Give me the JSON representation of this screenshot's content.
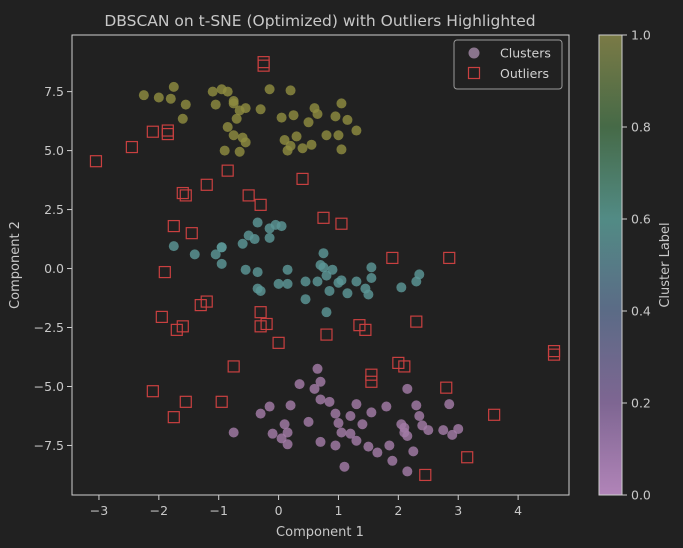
{
  "chart_data": {
    "type": "scatter",
    "title": "DBSCAN on t-SNE (Optimized) with Outliers Highlighted",
    "xlabel": "Component 1",
    "ylabel": "Component 2",
    "xlim": [
      -3.45,
      4.85
    ],
    "ylim": [
      -9.6,
      9.9
    ],
    "xticks": [
      -3,
      -2,
      -1,
      0,
      1,
      2,
      3,
      4
    ],
    "xtick_labels": [
      "−3",
      "−2",
      "−1",
      "0",
      "1",
      "2",
      "3",
      "4"
    ],
    "yticks": [
      -7.5,
      -5.0,
      -2.5,
      0.0,
      2.5,
      5.0,
      7.5
    ],
    "ytick_labels": [
      "−7.5",
      "−5.0",
      "−2.5",
      "0.0",
      "2.5",
      "5.0",
      "7.5"
    ],
    "grid": false,
    "legend_position": "top-right",
    "colorbar": {
      "label": "Cluster Label",
      "ticks": [
        0.0,
        0.2,
        0.4,
        0.6,
        0.8,
        1.0
      ],
      "tick_labels": [
        "0.0",
        "0.2",
        "0.4",
        "0.6",
        "0.8",
        "1.0"
      ],
      "colormap": [
        "#b184b8",
        "#7e6692",
        "#5b6b86",
        "#528b85",
        "#466a47",
        "#7a7a46"
      ]
    },
    "series": [
      {
        "name": "Clusters",
        "marker": "circle",
        "clusters": [
          {
            "label": 1.0,
            "color": "#8e8b3f",
            "points": [
              [
                -2.25,
                7.35
              ],
              [
                -2.0,
                7.25
              ],
              [
                -1.8,
                7.2
              ],
              [
                -1.75,
                7.7
              ],
              [
                -1.55,
                6.95
              ],
              [
                -1.6,
                6.35
              ],
              [
                -1.1,
                7.5
              ],
              [
                -0.95,
                7.6
              ],
              [
                -0.85,
                7.5
              ],
              [
                -0.75,
                7.1
              ],
              [
                -1.05,
                6.95
              ],
              [
                -0.7,
                6.35
              ],
              [
                -0.65,
                6.7
              ],
              [
                -0.55,
                6.8
              ],
              [
                -0.3,
                6.75
              ],
              [
                -0.85,
                6.0
              ],
              [
                -0.75,
                5.65
              ],
              [
                -0.6,
                5.55
              ],
              [
                -0.9,
                5.0
              ],
              [
                -0.65,
                4.95
              ],
              [
                -0.55,
                5.35
              ],
              [
                -0.15,
                7.6
              ],
              [
                0.05,
                6.4
              ],
              [
                0.25,
                6.5
              ],
              [
                0.2,
                7.55
              ],
              [
                0.5,
                6.2
              ],
              [
                0.6,
                6.8
              ],
              [
                0.65,
                6.55
              ],
              [
                0.1,
                5.45
              ],
              [
                0.2,
                5.2
              ],
              [
                0.3,
                5.6
              ],
              [
                0.4,
                5.1
              ],
              [
                0.15,
                5.0
              ],
              [
                0.55,
                5.25
              ],
              [
                0.8,
                5.65
              ],
              [
                0.95,
                6.45
              ],
              [
                1.05,
                7.0
              ],
              [
                1.15,
                6.3
              ],
              [
                1.0,
                5.65
              ],
              [
                1.05,
                5.05
              ],
              [
                1.3,
                5.85
              ],
              [
                -0.75,
                7.0
              ]
            ]
          },
          {
            "label": 0.5,
            "color": "#5b9696",
            "points": [
              [
                -1.75,
                0.95
              ],
              [
                -1.4,
                0.6
              ],
              [
                -1.05,
                0.6
              ],
              [
                -0.95,
                0.9
              ],
              [
                -0.95,
                0.2
              ],
              [
                -0.6,
                1.05
              ],
              [
                -0.5,
                1.4
              ],
              [
                -0.4,
                1.25
              ],
              [
                -0.35,
                1.95
              ],
              [
                -0.15,
                1.3
              ],
              [
                -0.15,
                1.7
              ],
              [
                0.05,
                1.8
              ],
              [
                -0.55,
                -0.05
              ],
              [
                -0.35,
                -0.15
              ],
              [
                -0.3,
                -0.95
              ],
              [
                -0.35,
                -0.85
              ],
              [
                0.0,
                -0.65
              ],
              [
                0.15,
                -0.65
              ],
              [
                0.15,
                -0.05
              ],
              [
                0.45,
                -0.55
              ],
              [
                0.45,
                -1.3
              ],
              [
                0.65,
                -0.55
              ],
              [
                0.7,
                0.15
              ],
              [
                0.75,
                0.05
              ],
              [
                0.75,
                0.65
              ],
              [
                0.8,
                -0.3
              ],
              [
                0.85,
                -0.95
              ],
              [
                0.9,
                -0.05
              ],
              [
                1.0,
                -0.6
              ],
              [
                1.05,
                -0.5
              ],
              [
                1.15,
                -1.05
              ],
              [
                0.8,
                -1.85
              ],
              [
                1.3,
                -0.55
              ],
              [
                1.45,
                -0.85
              ],
              [
                1.5,
                -1.1
              ],
              [
                1.55,
                -0.4
              ],
              [
                1.55,
                0.05
              ],
              [
                2.05,
                -0.8
              ],
              [
                2.3,
                -0.55
              ],
              [
                2.35,
                -0.25
              ],
              [
                -0.05,
                1.85
              ],
              [
                -0.95,
                0.9
              ]
            ]
          },
          {
            "label": 0.0,
            "color": "#a27ba6",
            "points": [
              [
                -0.75,
                -6.95
              ],
              [
                -0.3,
                -6.15
              ],
              [
                -0.15,
                -5.85
              ],
              [
                -0.1,
                -7.0
              ],
              [
                0.05,
                -7.2
              ],
              [
                0.1,
                -6.6
              ],
              [
                0.15,
                -6.95
              ],
              [
                0.15,
                -7.45
              ],
              [
                0.2,
                -5.8
              ],
              [
                0.35,
                -4.9
              ],
              [
                0.5,
                -6.5
              ],
              [
                0.6,
                -5.1
              ],
              [
                0.65,
                -4.25
              ],
              [
                0.7,
                -4.8
              ],
              [
                0.7,
                -5.55
              ],
              [
                0.7,
                -7.35
              ],
              [
                0.85,
                -5.65
              ],
              [
                0.95,
                -6.15
              ],
              [
                0.95,
                -7.5
              ],
              [
                1.0,
                -6.55
              ],
              [
                1.05,
                -6.95
              ],
              [
                1.1,
                -8.4
              ],
              [
                1.2,
                -7.0
              ],
              [
                1.2,
                -6.25
              ],
              [
                1.3,
                -5.75
              ],
              [
                1.3,
                -7.3
              ],
              [
                1.4,
                -6.6
              ],
              [
                1.5,
                -7.55
              ],
              [
                1.55,
                -6.1
              ],
              [
                1.65,
                -7.8
              ],
              [
                1.8,
                -5.85
              ],
              [
                1.85,
                -7.5
              ],
              [
                1.9,
                -8.15
              ],
              [
                2.1,
                -6.75
              ],
              [
                2.15,
                -5.1
              ],
              [
                2.15,
                -7.1
              ],
              [
                2.25,
                -7.75
              ],
              [
                2.15,
                -8.6
              ],
              [
                2.3,
                -5.8
              ],
              [
                2.35,
                -6.25
              ],
              [
                2.4,
                -6.65
              ],
              [
                2.5,
                -6.85
              ],
              [
                2.75,
                -6.85
              ],
              [
                2.85,
                -5.75
              ],
              [
                2.9,
                -7.05
              ],
              [
                3.0,
                -6.8
              ],
              [
                2.05,
                -6.6
              ],
              [
                2.1,
                -6.95
              ]
            ]
          }
        ]
      },
      {
        "name": "Outliers",
        "marker": "square",
        "color": "#c94040",
        "points": [
          [
            -3.05,
            4.55
          ],
          [
            -2.45,
            5.15
          ],
          [
            -2.1,
            5.8
          ],
          [
            -1.85,
            5.85
          ],
          [
            -1.85,
            5.7
          ],
          [
            -1.2,
            3.55
          ],
          [
            -1.6,
            3.2
          ],
          [
            -1.55,
            3.1
          ],
          [
            -0.85,
            4.15
          ],
          [
            -0.5,
            3.1
          ],
          [
            -0.3,
            2.7
          ],
          [
            0.4,
            3.8
          ],
          [
            -0.25,
            8.75
          ],
          [
            -0.25,
            8.6
          ],
          [
            0.75,
            2.15
          ],
          [
            1.05,
            1.9
          ],
          [
            -1.75,
            1.8
          ],
          [
            -1.45,
            1.5
          ],
          [
            -1.9,
            -0.15
          ],
          [
            -1.95,
            -2.05
          ],
          [
            -1.6,
            -2.45
          ],
          [
            -1.7,
            -2.6
          ],
          [
            -1.3,
            -1.55
          ],
          [
            -1.2,
            -1.4
          ],
          [
            -0.3,
            -1.85
          ],
          [
            -0.3,
            -2.45
          ],
          [
            -0.2,
            -2.35
          ],
          [
            -0.75,
            -4.15
          ],
          [
            0.0,
            -3.15
          ],
          [
            0.8,
            -2.8
          ],
          [
            1.35,
            -2.4
          ],
          [
            1.45,
            -2.6
          ],
          [
            1.9,
            0.45
          ],
          [
            2.3,
            -2.25
          ],
          [
            2.85,
            0.45
          ],
          [
            1.55,
            -4.5
          ],
          [
            1.55,
            -4.8
          ],
          [
            2.0,
            -4.0
          ],
          [
            2.1,
            -4.15
          ],
          [
            2.8,
            -5.05
          ],
          [
            3.6,
            -6.2
          ],
          [
            4.6,
            -3.5
          ],
          [
            4.6,
            -3.65
          ],
          [
            3.15,
            -8.0
          ],
          [
            2.45,
            -8.75
          ],
          [
            -2.1,
            -5.2
          ],
          [
            -1.55,
            -5.65
          ],
          [
            -1.75,
            -6.3
          ],
          [
            -0.95,
            -5.65
          ]
        ]
      }
    ]
  }
}
